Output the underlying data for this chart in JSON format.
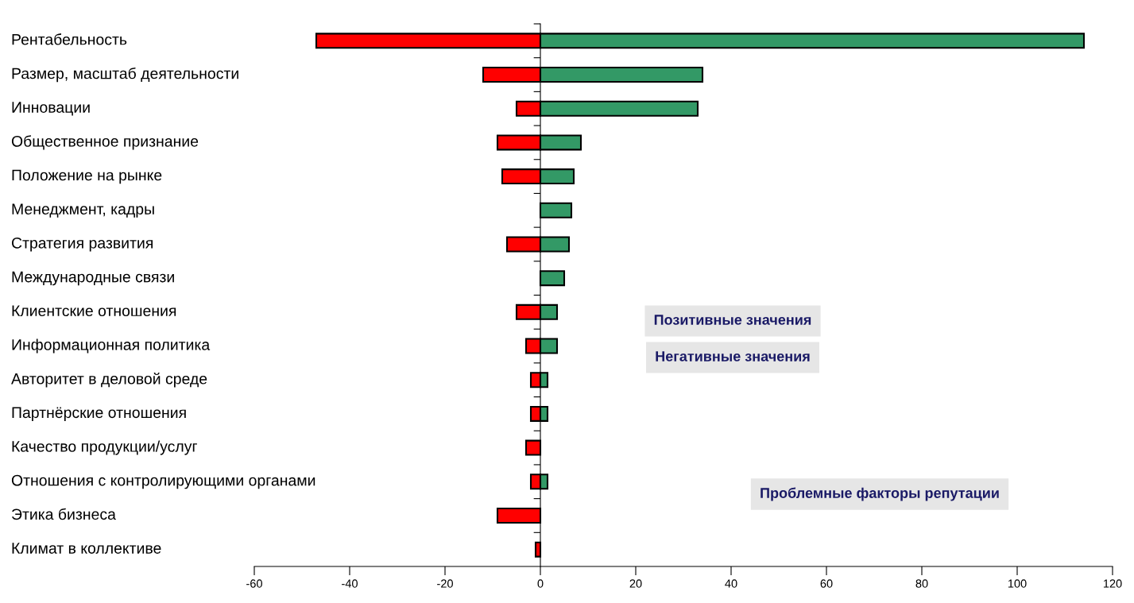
{
  "chart_data": {
    "type": "bar",
    "orientation": "horizontal",
    "stacked": true,
    "categories": [
      "Рентабельность",
      "Размер, масштаб деятельности",
      "Инновации",
      "Общественное признание",
      "Положение на рынке",
      "Менеджмент, кадры",
      "Стратегия развития",
      "Международные связи",
      "Клиентские отношения",
      "Информационная политика",
      "Авторитет в деловой среде",
      "Партнёрские отношения",
      "Качество продукции/услуг",
      "Отношения с контролирующими органами",
      "Этика бизнеса",
      "Климат в коллективе"
    ],
    "series": [
      {
        "color": "#ff0000",
        "values": [
          -47,
          -12,
          -5,
          -9,
          -8,
          0,
          -7,
          0,
          -5,
          -3,
          -2,
          -2,
          -3,
          -2,
          -9,
          -1
        ]
      },
      {
        "color": "#339966",
        "values": [
          114,
          34,
          33,
          8.5,
          7,
          6.5,
          6,
          5,
          3.5,
          3.5,
          1.5,
          1.5,
          0,
          1.5,
          0,
          0
        ]
      }
    ],
    "xlim": [
      -60,
      120
    ],
    "xticks": [
      -60,
      -40,
      -20,
      0,
      20,
      40,
      60,
      80,
      100,
      120
    ],
    "annotations": [
      "Позитивные значения",
      "Негативные значения",
      "Проблемные факторы репутации"
    ]
  }
}
